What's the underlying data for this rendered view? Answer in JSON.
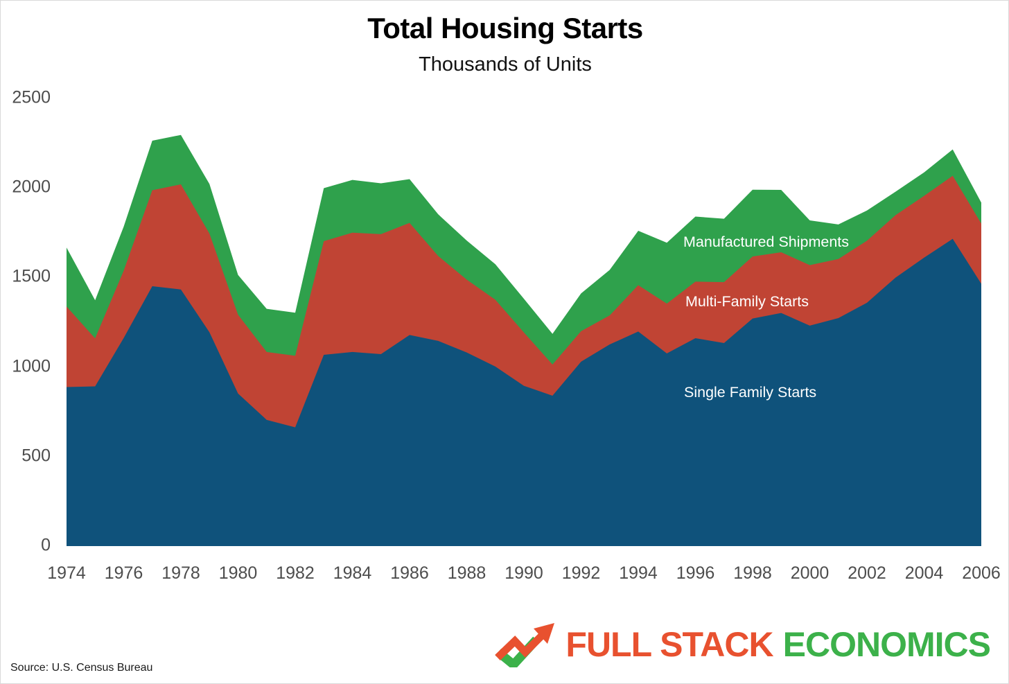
{
  "header": {
    "title": "Total Housing Starts",
    "subtitle": "Thousands of Units"
  },
  "source_note": "Source: U.S. Census Bureau",
  "branding": {
    "part1": "FULL STACK",
    "part2": "ECONOMICS",
    "part1_color": "#E8512F",
    "part2_color": "#3CB14A",
    "icon": "trend-arrow-check-icon"
  },
  "axis_text_color": "#4d4d4d",
  "chart_data": {
    "type": "area",
    "stacked": true,
    "title": "Total Housing Starts",
    "subtitle": "Thousands of Units",
    "grid": false,
    "legend": "inline-labels",
    "ylim": [
      0,
      2500
    ],
    "y_ticks": [
      0,
      500,
      1000,
      1500,
      2000,
      2500
    ],
    "x_tick_labels": [
      "1974",
      "1976",
      "1978",
      "1980",
      "1982",
      "1984",
      "1986",
      "1988",
      "1990",
      "1992",
      "1994",
      "1996",
      "1998",
      "2000",
      "2002",
      "2004",
      "2006"
    ],
    "x": [
      1974,
      1975,
      1976,
      1977,
      1978,
      1979,
      1980,
      1981,
      1982,
      1983,
      1984,
      1985,
      1986,
      1987,
      1988,
      1989,
      1990,
      1991,
      1992,
      1993,
      1994,
      1995,
      1996,
      1997,
      1998,
      1999,
      2000,
      2001,
      2002,
      2003,
      2004,
      2005,
      2006
    ],
    "series": [
      {
        "name": "Single Family Starts",
        "color": "#0F527B",
        "values": [
          888,
          892,
          1162,
          1451,
          1433,
          1194,
          852,
          705,
          663,
          1068,
          1084,
          1072,
          1179,
          1146,
          1081,
          1003,
          895,
          840,
          1030,
          1126,
          1198,
          1076,
          1161,
          1134,
          1271,
          1302,
          1231,
          1273,
          1359,
          1499,
          1611,
          1716,
          1465
        ]
      },
      {
        "name": "Multi-Family Starts",
        "color": "#C04434",
        "values": [
          450,
          268,
          376,
          536,
          587,
          551,
          440,
          379,
          400,
          635,
          666,
          670,
          626,
          474,
          407,
          373,
          298,
          174,
          170,
          162,
          259,
          278,
          316,
          340,
          346,
          339,
          338,
          330,
          346,
          349,
          345,
          352,
          336
        ]
      },
      {
        "name": "Manufactured Shipments",
        "color": "#2FA14C",
        "values": [
          329,
          213,
          246,
          277,
          276,
          277,
          222,
          241,
          240,
          296,
          295,
          284,
          244,
          233,
          218,
          198,
          188,
          171,
          211,
          254,
          304,
          340,
          363,
          354,
          373,
          348,
          250,
          193,
          169,
          131,
          131,
          147,
          117
        ]
      }
    ]
  }
}
